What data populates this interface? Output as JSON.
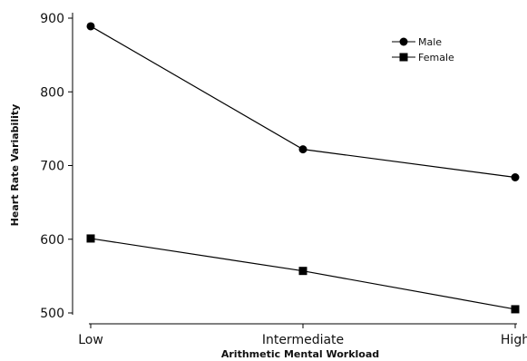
{
  "chart_data": {
    "type": "line",
    "title": "",
    "xlabel": "Arithmetic Mental Workload",
    "ylabel": "Heart Rate Variability",
    "categories": [
      "Low",
      "Intermediate",
      "High"
    ],
    "ylim": [
      500,
      900
    ],
    "yticks": [
      500,
      600,
      700,
      800,
      900
    ],
    "grid": false,
    "legend_position": "top-right",
    "series": [
      {
        "name": "Male",
        "marker": "circle",
        "color": "#000000",
        "values": [
          889,
          722,
          684
        ]
      },
      {
        "name": "Female",
        "marker": "square",
        "color": "#000000",
        "values": [
          601,
          557,
          505
        ]
      }
    ]
  }
}
